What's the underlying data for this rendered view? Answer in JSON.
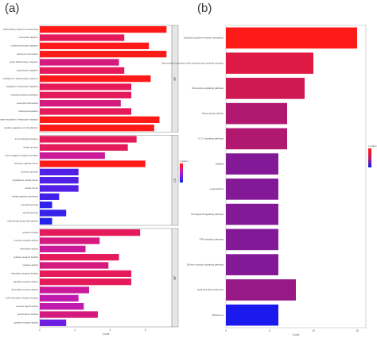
{
  "panels": {
    "a": "(a)",
    "b": "(b)"
  },
  "chart_data": [
    {
      "type": "bar",
      "orientation": "horizontal",
      "panel": "(a)",
      "xlabel": "Count",
      "xlim": [
        0,
        7.5
      ],
      "xticks": [
        0,
        2,
        4,
        6
      ],
      "legend_title": "p.adjust",
      "legend_position": "right",
      "colors": {
        "low_p": "#ff1a1a",
        "mid_p": "#b01ad6",
        "high_p": "#2222ee"
      },
      "facets": [
        {
          "strip": "BP",
          "categories": [
            "inflammatory response to wounding",
            "neutrophil migration",
            "myeloid leukocyte migration",
            "leukocyte chemotaxis",
            "acute inflammatory response",
            "granulocyte migration",
            "regulation of inflammatory response",
            "regulation of leukocyte migration",
            "myeloid leukocyte activation",
            "neutrophil chemotaxis",
            "leukocyte activation",
            "positive regulation of leukocyte migration",
            "positive regulation of cell adhesion"
          ],
          "values": [
            7.2,
            4.8,
            6.2,
            7.2,
            4.5,
            4.8,
            6.3,
            5.2,
            5.2,
            4.6,
            5.2,
            6.8,
            6.5
          ],
          "p_adjust": [
            0.001,
            0.002,
            0.001,
            0.001,
            0.003,
            0.002,
            0.001,
            0.002,
            0.002,
            0.003,
            0.002,
            0.001,
            0.001
          ]
        },
        {
          "strip": "CC",
          "categories": [
            "immunological synapse",
            "tertiary granule",
            "immunological synapse formation",
            "secretory granule lumen",
            "secretory granule",
            "cytoplasmic vesicle lumen",
            "vesicle lumen",
            "tertiary granule membrane",
            "azurophil granule",
            "specific granule",
            "high-density lipoprotein particle"
          ],
          "values": [
            5.5,
            5.0,
            3.7,
            6.0,
            2.2,
            2.2,
            2.2,
            1.1,
            0.7,
            1.5,
            0.7
          ],
          "p_adjust": [
            0.002,
            0.002,
            0.004,
            0.001,
            0.03,
            0.03,
            0.03,
            0.04,
            0.05,
            0.045,
            0.06
          ]
        },
        {
          "strip": "MF",
          "categories": [
            "cytokine binding",
            "immune receptor activity",
            "chemokine activity",
            "cytokine receptor binding",
            "cytokine activity",
            "chemokine receptor binding",
            "signaling receptor activity",
            "chemokine receptor activity",
            "CCR chemokine receptor binding",
            "receptor ligand activity",
            "growth factor binding",
            "cytokine receptor activity"
          ],
          "values": [
            5.7,
            3.4,
            2.6,
            4.5,
            3.9,
            5.2,
            5.2,
            2.8,
            2.2,
            2.5,
            3.3,
            1.5
          ],
          "p_adjust": [
            0.002,
            0.003,
            0.004,
            0.002,
            0.003,
            0.002,
            0.002,
            0.004,
            0.005,
            0.005,
            0.003,
            0.02
          ]
        }
      ]
    },
    {
      "type": "bar",
      "orientation": "horizontal",
      "panel": "(b)",
      "xlabel": "Count",
      "xlim": [
        0,
        16
      ],
      "xticks": [
        0,
        5,
        10,
        15
      ],
      "legend_title": "p.adjust",
      "legend_position": "right",
      "colors": {
        "low_p": "#ff1a1a",
        "mid_p": "#c8195e",
        "high_p": "#1a1aee"
      },
      "categories": [
        "Cytokine-cytokine receptor interaction",
        "Viral protein interaction with cytokine and cytokine receptor",
        "Chemokine signaling pathway",
        "Rheumatoid arthritis",
        "IL-17 signaling pathway",
        "Malaria",
        "Legionellosis",
        "NF-kappa B signaling pathway",
        "TNF signaling pathway",
        "Toll-like receptor signaling pathway",
        "Lipid and atherosclerosis",
        "Influenza A"
      ],
      "values": [
        15,
        10,
        9,
        7,
        7,
        6,
        6,
        6,
        6,
        6,
        8,
        6
      ],
      "p_adjust": [
        0.0001,
        0.0005,
        0.001,
        0.002,
        0.002,
        0.004,
        0.004,
        0.004,
        0.004,
        0.004,
        0.003,
        0.02
      ]
    }
  ]
}
